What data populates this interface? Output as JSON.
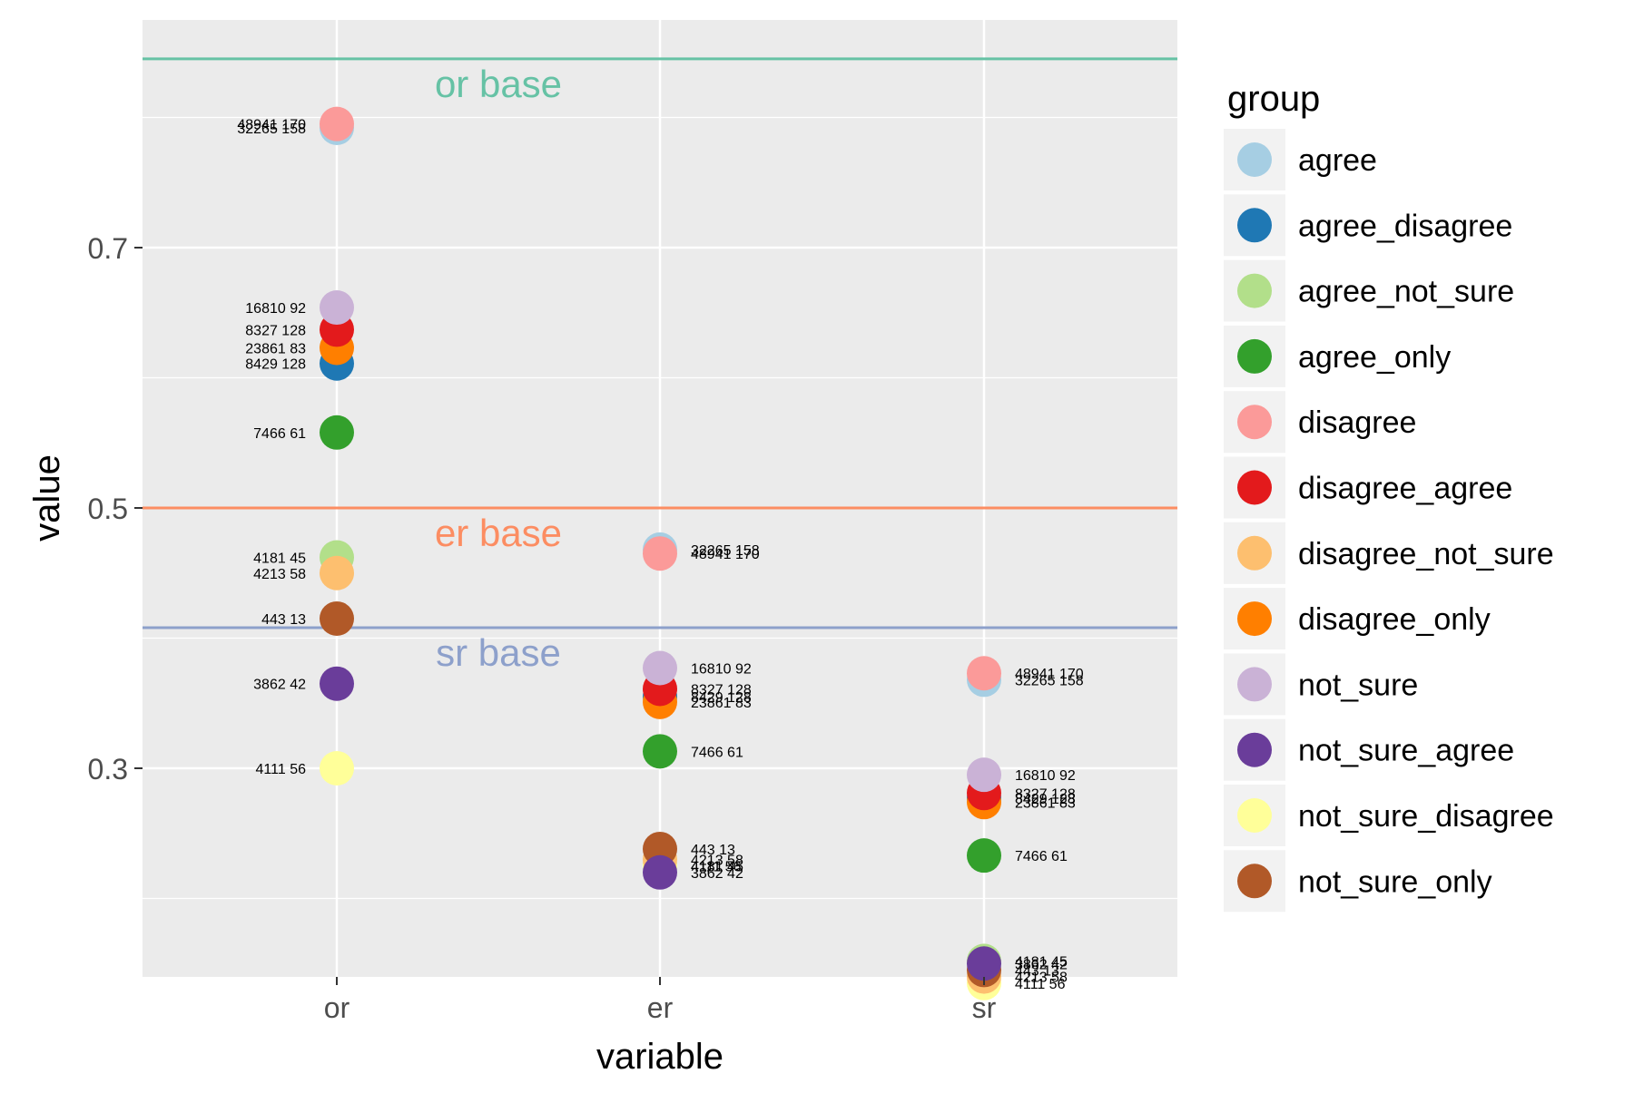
{
  "chart_data": {
    "type": "scatter",
    "xlabel": "variable",
    "ylabel": "value",
    "categories": [
      "or",
      "er",
      "sr"
    ],
    "ylim": [
      0.135,
      0.87
    ],
    "yticks": [
      0.3,
      0.5,
      0.7
    ],
    "ytick_labels": [
      "0.3",
      "0.5",
      "0.7"
    ],
    "grid": true,
    "background": "#EBEBEB",
    "legend": {
      "title": "group",
      "position": "right",
      "entries": [
        {
          "name": "agree",
          "color": "#A6CEE3"
        },
        {
          "name": "agree_disagree",
          "color": "#1F78B4"
        },
        {
          "name": "agree_not_sure",
          "color": "#B2DF8A"
        },
        {
          "name": "agree_only",
          "color": "#33A02C"
        },
        {
          "name": "disagree",
          "color": "#FB9A99"
        },
        {
          "name": "disagree_agree",
          "color": "#E31A1C"
        },
        {
          "name": "disagree_not_sure",
          "color": "#FDBF6F"
        },
        {
          "name": "disagree_only",
          "color": "#FF7F00"
        },
        {
          "name": "not_sure",
          "color": "#CAB2D6"
        },
        {
          "name": "not_sure_agree",
          "color": "#6A3D9A"
        },
        {
          "name": "not_sure_disagree",
          "color": "#FFFF99"
        },
        {
          "name": "not_sure_only",
          "color": "#B15928"
        }
      ]
    },
    "reference_lines": [
      {
        "label": "or base",
        "value": 0.845,
        "color": "#66C2A5"
      },
      {
        "label": "er base",
        "value": 0.5,
        "color": "#FC8D62"
      },
      {
        "label": "sr base",
        "value": 0.408,
        "color": "#8DA0CB"
      }
    ],
    "series": [
      {
        "name": "agree",
        "values": [
          0.792,
          0.468,
          0.368
        ],
        "label": "32265 158",
        "label_side": [
          "left",
          "right",
          "right"
        ]
      },
      {
        "name": "agree_disagree",
        "values": [
          0.611,
          0.355,
          0.277
        ],
        "label": "8429 128",
        "label_side": [
          "left",
          "right",
          "right"
        ]
      },
      {
        "name": "agree_not_sure",
        "values": [
          0.462,
          0.225,
          0.152
        ],
        "label": "4181 45",
        "label_side": [
          "left",
          "right",
          "right"
        ]
      },
      {
        "name": "agree_only",
        "values": [
          0.558,
          0.313,
          0.233
        ],
        "label": "7466 61",
        "label_side": [
          "left",
          "right",
          "right"
        ]
      },
      {
        "name": "disagree",
        "values": [
          0.795,
          0.465,
          0.373
        ],
        "label": "48941 170",
        "label_side": [
          "left",
          "right",
          "right"
        ]
      },
      {
        "name": "disagree_agree",
        "values": [
          0.637,
          0.361,
          0.281
        ],
        "label": "8327 128",
        "label_side": [
          "left",
          "right",
          "right"
        ]
      },
      {
        "name": "disagree_not_sure",
        "values": [
          0.45,
          0.23,
          0.14
        ],
        "label": "4213 58",
        "label_side": [
          "left",
          "right",
          "right"
        ]
      },
      {
        "name": "disagree_only",
        "values": [
          0.623,
          0.351,
          0.274
        ],
        "label": "23861 83",
        "label_side": [
          "left",
          "right",
          "right"
        ]
      },
      {
        "name": "not_sure",
        "values": [
          0.654,
          0.377,
          0.295
        ],
        "label": "16810 92",
        "label_side": [
          "left",
          "right",
          "right"
        ]
      },
      {
        "name": "not_sure_agree",
        "values": [
          0.365,
          0.22,
          0.15
        ],
        "label": "3862 42",
        "label_side": [
          "left",
          "right",
          "right"
        ]
      },
      {
        "name": "not_sure_disagree",
        "values": [
          0.3,
          0.225,
          0.135
        ],
        "label": "4111 56",
        "label_side": [
          "left",
          "right",
          "right"
        ]
      },
      {
        "name": "not_sure_only",
        "values": [
          0.415,
          0.238,
          0.145
        ],
        "label": "443 13",
        "label_side": [
          "left",
          "right",
          "right"
        ]
      }
    ]
  }
}
